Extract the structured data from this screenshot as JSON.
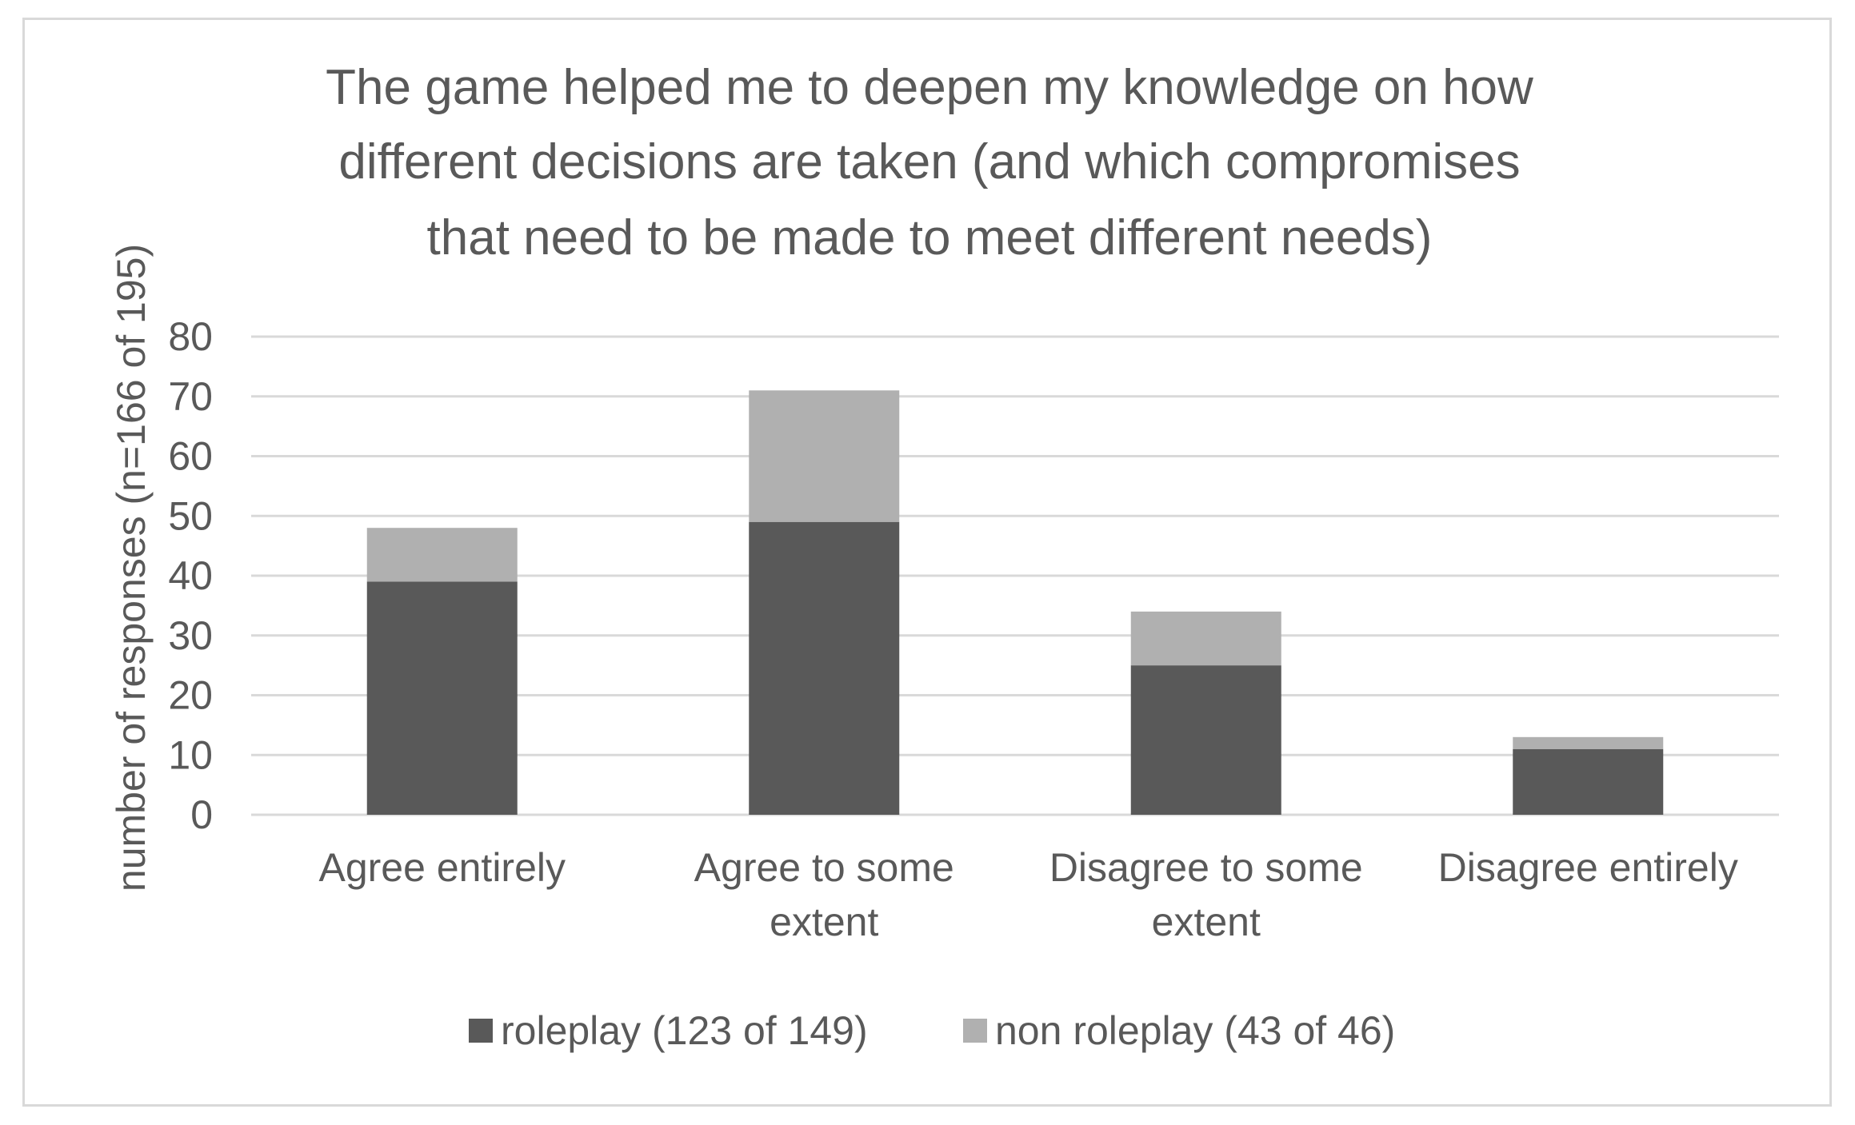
{
  "chart_data": {
    "type": "bar",
    "stacked": true,
    "title_lines": [
      "The game helped me to  deepen my knowledge on how",
      "different decisions are taken (and which compromises",
      "that need to be made to meet different needs)"
    ],
    "ylabel": "number of responses (n=166 of 195)",
    "xlabel": "",
    "ylim": [
      0,
      80
    ],
    "yticks": [
      0,
      10,
      20,
      30,
      40,
      50,
      60,
      70,
      80
    ],
    "grid": true,
    "legend_position": "bottom",
    "categories": [
      [
        "Agree entirely"
      ],
      [
        "Agree to some",
        "extent"
      ],
      [
        "Disagree to some",
        "extent"
      ],
      [
        "Disagree entirely"
      ]
    ],
    "series": [
      {
        "name": "roleplay (123 of 149)",
        "color": "#595959",
        "values": [
          39,
          49,
          25,
          11
        ]
      },
      {
        "name": "non roleplay (43 of 46)",
        "color": "#b0b0b0",
        "values": [
          9,
          22,
          9,
          2
        ]
      }
    ],
    "colors": {
      "text": "#595959",
      "grid": "#d9d9d9",
      "border": "#d9d9d9"
    }
  }
}
